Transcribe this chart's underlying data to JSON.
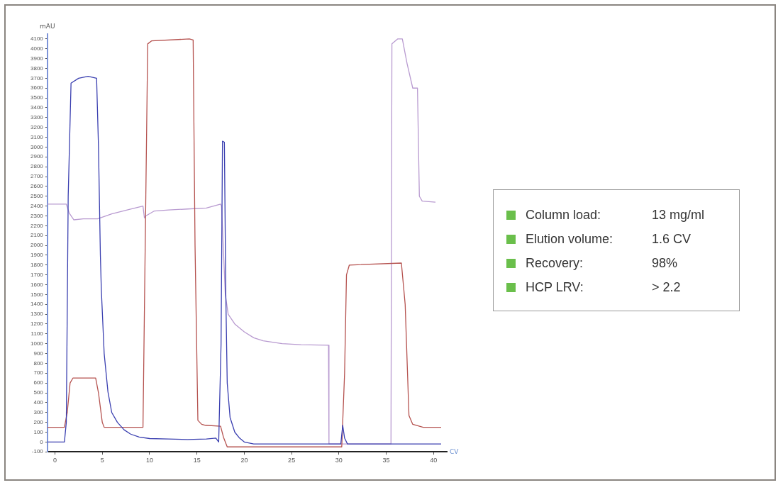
{
  "chart_data": {
    "type": "line",
    "xlabel": "CV",
    "ylabel": "mAU",
    "xlim": [
      -0.8,
      41.4
    ],
    "xticks": [
      0,
      5,
      10,
      15,
      20,
      25,
      30,
      35,
      40
    ],
    "ylim": [
      -100,
      4150
    ],
    "yticks": [
      -100,
      0,
      100,
      200,
      300,
      400,
      500,
      600,
      700,
      800,
      900,
      1000,
      1100,
      1200,
      1300,
      1400,
      1500,
      1600,
      1700,
      1800,
      1900,
      2000,
      2100,
      2200,
      2300,
      2400,
      2500,
      2600,
      2700,
      2800,
      2900,
      3000,
      3100,
      3200,
      3300,
      3400,
      3500,
      3600,
      3700,
      3800,
      3900,
      4000,
      4100
    ],
    "grid": false,
    "legend": false,
    "marker": "none",
    "line_style": "solid",
    "series": [
      {
        "color": "#3a3fb0",
        "x": [
          -0.8,
          1.0,
          1.2,
          1.4,
          1.7,
          2.5,
          3.5,
          4.4,
          4.6,
          4.8,
          4.9,
          5.2,
          5.6,
          6.0,
          6.6,
          7.3,
          8.0,
          8.9,
          10,
          12,
          14,
          16,
          17.0,
          17.3,
          17.55,
          17.7,
          17.9,
          18.05,
          18.2,
          18.5,
          19,
          19.5,
          20,
          21,
          25,
          30.2,
          30.4,
          30.6,
          30.9,
          32,
          40.8
        ],
        "values": [
          0,
          0,
          200,
          2500,
          3650,
          3700,
          3720,
          3700,
          3000,
          1900,
          1550,
          900,
          510,
          300,
          200,
          124,
          80,
          50,
          35,
          30,
          25,
          30,
          40,
          0,
          1000,
          3060,
          3050,
          1500,
          600,
          250,
          100,
          40,
          0,
          -20,
          -20,
          -20,
          170,
          40,
          -20,
          -20,
          -20
        ]
      },
      {
        "color": "#b5524f",
        "x": [
          -0.8,
          1.0,
          1.3,
          1.6,
          1.9,
          4.3,
          4.6,
          5.0,
          5.2,
          9.3,
          9.6,
          9.8,
          10.2,
          14.2,
          14.6,
          14.8,
          15.1,
          15.5,
          15.9,
          17.5,
          17.8,
          18.2,
          30.3,
          30.6,
          30.8,
          31.1,
          36.6,
          37.0,
          37.4,
          37.8,
          38.9,
          40.8
        ],
        "values": [
          150,
          150,
          300,
          600,
          650,
          650,
          500,
          200,
          150,
          150,
          2500,
          4050,
          4080,
          4100,
          4090,
          2000,
          220,
          180,
          170,
          160,
          50,
          -50,
          -50,
          700,
          1700,
          1800,
          1820,
          1400,
          270,
          180,
          150,
          150
        ]
      },
      {
        "color": "#b89ad0",
        "x": [
          -0.8,
          1.2,
          1.5,
          2.0,
          3.0,
          4.5,
          6,
          8,
          9.3,
          9.45,
          9.6,
          10.5,
          12,
          14,
          16,
          17.5,
          17.6,
          18.0,
          18.3,
          19,
          20,
          21,
          22,
          24,
          26,
          28.9,
          28.95,
          35.5,
          35.6,
          36.2,
          36.7,
          37.2,
          37.8,
          38.3,
          38.5,
          38.8,
          40.2
        ],
        "values": [
          2420,
          2420,
          2330,
          2260,
          2270,
          2270,
          2320,
          2370,
          2400,
          2280,
          2300,
          2350,
          2360,
          2370,
          2380,
          2420,
          2400,
          1500,
          1300,
          1200,
          1120,
          1060,
          1030,
          1000,
          990,
          985,
          -20,
          -20,
          4050,
          4100,
          4100,
          3850,
          3600,
          3600,
          2500,
          2450,
          2440
        ]
      }
    ],
    "annotations": [
      "Column load:",
      "13 mg/ml",
      "Elution volume:",
      "1.6 CV",
      "Recovery:",
      "98%",
      "HCP LRV:",
      "> 2.2"
    ]
  }
}
